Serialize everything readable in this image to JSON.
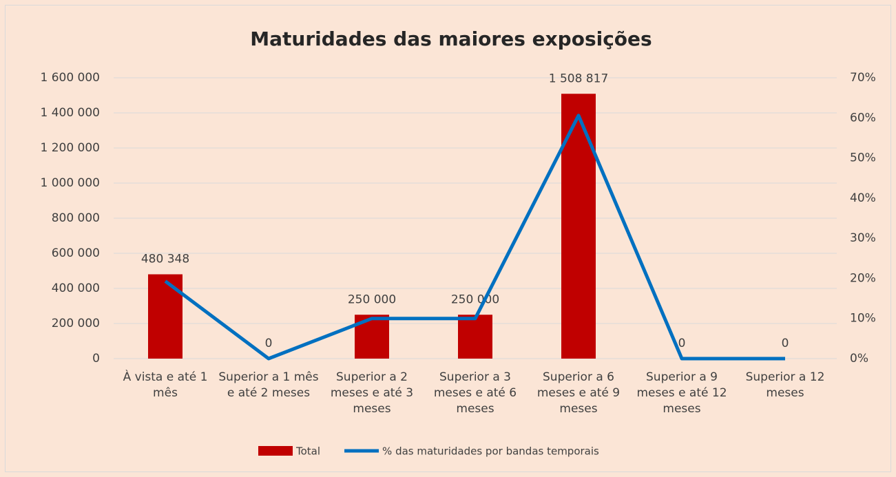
{
  "chart_data": {
    "type": "bar",
    "title": "Maturidades das maiores exposições",
    "categories": [
      "À vista e até 1 mês",
      "Superior a 1 mês e até 2 meses",
      "Superior a 2 meses e até 3 meses",
      "Superior a 3 meses e até 6 meses",
      "Superior a 6 meses e até 9 meses",
      "Superior a 9 meses e até 12 meses",
      "Superior a 12 meses"
    ],
    "series": [
      {
        "name": "Total",
        "color": "#c00000",
        "values": [
          480348,
          0,
          250000,
          250000,
          1508817,
          0,
          0
        ],
        "value_labels": [
          "480 348",
          "0",
          "250 000",
          "250 000",
          "1 508 817",
          "0",
          "0"
        ]
      },
      {
        "name": "% das maturidades por bandas temporais",
        "type": "line",
        "axis": "y2",
        "color": "#0070c0",
        "values": [
          19.3,
          0,
          10.0,
          10.0,
          60.6,
          0,
          0
        ]
      }
    ],
    "ylim": [
      0,
      1600000
    ],
    "yticks": [
      0,
      {
        "value": 200000,
        "label": "200 000"
      },
      {
        "value": 400000,
        "label": "400 000"
      },
      {
        "value": 600000,
        "label": "600 000"
      },
      {
        "value": 800000,
        "label": "800 000"
      },
      {
        "value": 1000000,
        "label": "1 000 000"
      },
      {
        "value": 1200000,
        "label": "1 200 000"
      },
      {
        "value": 1400000,
        "label": "1 400 000"
      },
      {
        "value": 1600000,
        "label": "1 600 000"
      }
    ],
    "y2lim": [
      0,
      70
    ],
    "y2ticks": [
      {
        "value": 0,
        "label": "0%"
      },
      {
        "value": 10,
        "label": "10%"
      },
      {
        "value": 20,
        "label": "20%"
      },
      {
        "value": 30,
        "label": "30%"
      },
      {
        "value": 40,
        "label": "40%"
      },
      {
        "value": 50,
        "label": "50%"
      },
      {
        "value": 60,
        "label": "60%"
      },
      {
        "value": 70,
        "label": "70%"
      }
    ],
    "grid": true,
    "legend": "bottom"
  }
}
